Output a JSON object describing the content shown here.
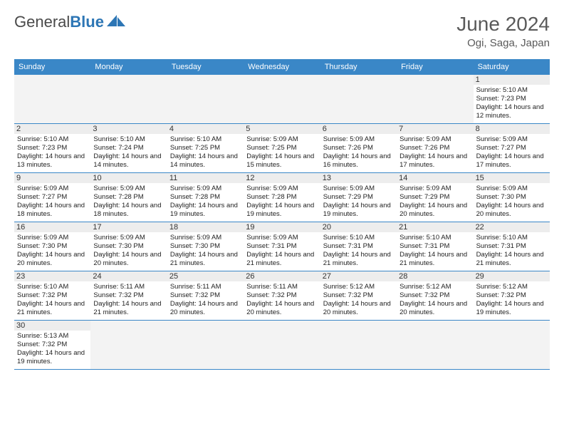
{
  "logo": {
    "text1": "General",
    "text2": "Blue"
  },
  "title": "June 2024",
  "location": "Ogi, Saga, Japan",
  "colors": {
    "header_bg": "#3a87c7",
    "header_text": "#ffffff",
    "daynum_bg": "#ededed",
    "border": "#3a87c7",
    "empty_bg": "#f3f3f3",
    "title_color": "#5a5a5a",
    "logo_blue": "#2d76b5"
  },
  "day_names": [
    "Sunday",
    "Monday",
    "Tuesday",
    "Wednesday",
    "Thursday",
    "Friday",
    "Saturday"
  ],
  "first_weekday": 6,
  "num_days": 30,
  "days": {
    "1": {
      "sunrise": "5:10 AM",
      "sunset": "7:23 PM",
      "daylight": "14 hours and 12 minutes."
    },
    "2": {
      "sunrise": "5:10 AM",
      "sunset": "7:23 PM",
      "daylight": "14 hours and 13 minutes."
    },
    "3": {
      "sunrise": "5:10 AM",
      "sunset": "7:24 PM",
      "daylight": "14 hours and 14 minutes."
    },
    "4": {
      "sunrise": "5:10 AM",
      "sunset": "7:25 PM",
      "daylight": "14 hours and 14 minutes."
    },
    "5": {
      "sunrise": "5:09 AM",
      "sunset": "7:25 PM",
      "daylight": "14 hours and 15 minutes."
    },
    "6": {
      "sunrise": "5:09 AM",
      "sunset": "7:26 PM",
      "daylight": "14 hours and 16 minutes."
    },
    "7": {
      "sunrise": "5:09 AM",
      "sunset": "7:26 PM",
      "daylight": "14 hours and 17 minutes."
    },
    "8": {
      "sunrise": "5:09 AM",
      "sunset": "7:27 PM",
      "daylight": "14 hours and 17 minutes."
    },
    "9": {
      "sunrise": "5:09 AM",
      "sunset": "7:27 PM",
      "daylight": "14 hours and 18 minutes."
    },
    "10": {
      "sunrise": "5:09 AM",
      "sunset": "7:28 PM",
      "daylight": "14 hours and 18 minutes."
    },
    "11": {
      "sunrise": "5:09 AM",
      "sunset": "7:28 PM",
      "daylight": "14 hours and 19 minutes."
    },
    "12": {
      "sunrise": "5:09 AM",
      "sunset": "7:28 PM",
      "daylight": "14 hours and 19 minutes."
    },
    "13": {
      "sunrise": "5:09 AM",
      "sunset": "7:29 PM",
      "daylight": "14 hours and 19 minutes."
    },
    "14": {
      "sunrise": "5:09 AM",
      "sunset": "7:29 PM",
      "daylight": "14 hours and 20 minutes."
    },
    "15": {
      "sunrise": "5:09 AM",
      "sunset": "7:30 PM",
      "daylight": "14 hours and 20 minutes."
    },
    "16": {
      "sunrise": "5:09 AM",
      "sunset": "7:30 PM",
      "daylight": "14 hours and 20 minutes."
    },
    "17": {
      "sunrise": "5:09 AM",
      "sunset": "7:30 PM",
      "daylight": "14 hours and 20 minutes."
    },
    "18": {
      "sunrise": "5:09 AM",
      "sunset": "7:30 PM",
      "daylight": "14 hours and 21 minutes."
    },
    "19": {
      "sunrise": "5:09 AM",
      "sunset": "7:31 PM",
      "daylight": "14 hours and 21 minutes."
    },
    "20": {
      "sunrise": "5:10 AM",
      "sunset": "7:31 PM",
      "daylight": "14 hours and 21 minutes."
    },
    "21": {
      "sunrise": "5:10 AM",
      "sunset": "7:31 PM",
      "daylight": "14 hours and 21 minutes."
    },
    "22": {
      "sunrise": "5:10 AM",
      "sunset": "7:31 PM",
      "daylight": "14 hours and 21 minutes."
    },
    "23": {
      "sunrise": "5:10 AM",
      "sunset": "7:32 PM",
      "daylight": "14 hours and 21 minutes."
    },
    "24": {
      "sunrise": "5:11 AM",
      "sunset": "7:32 PM",
      "daylight": "14 hours and 21 minutes."
    },
    "25": {
      "sunrise": "5:11 AM",
      "sunset": "7:32 PM",
      "daylight": "14 hours and 20 minutes."
    },
    "26": {
      "sunrise": "5:11 AM",
      "sunset": "7:32 PM",
      "daylight": "14 hours and 20 minutes."
    },
    "27": {
      "sunrise": "5:12 AM",
      "sunset": "7:32 PM",
      "daylight": "14 hours and 20 minutes."
    },
    "28": {
      "sunrise": "5:12 AM",
      "sunset": "7:32 PM",
      "daylight": "14 hours and 20 minutes."
    },
    "29": {
      "sunrise": "5:12 AM",
      "sunset": "7:32 PM",
      "daylight": "14 hours and 19 minutes."
    },
    "30": {
      "sunrise": "5:13 AM",
      "sunset": "7:32 PM",
      "daylight": "14 hours and 19 minutes."
    }
  }
}
